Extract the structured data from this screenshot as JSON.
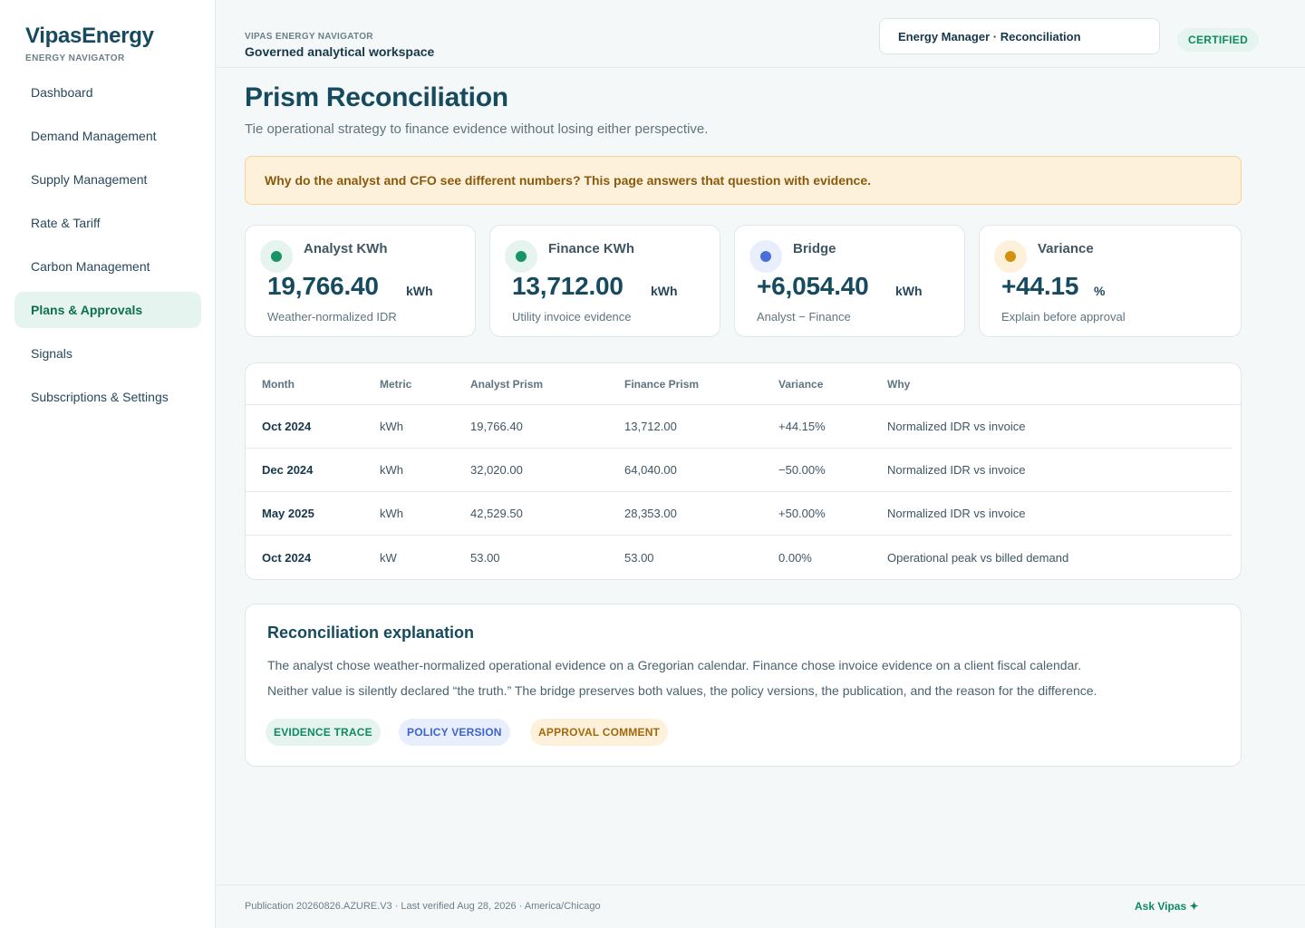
{
  "brand": {
    "name": "VipasEnergy",
    "subtitle": "ENERGY NAVIGATOR"
  },
  "sidebar": {
    "items": [
      {
        "label": "Dashboard"
      },
      {
        "label": "Demand Management"
      },
      {
        "label": "Supply Management"
      },
      {
        "label": "Rate & Tariff"
      },
      {
        "label": "Carbon Management"
      },
      {
        "label": "Plans & Approvals",
        "active": true
      },
      {
        "label": "Signals"
      },
      {
        "label": "Subscriptions & Settings"
      }
    ]
  },
  "header": {
    "eyebrow": "VIPAS ENERGY NAVIGATOR",
    "workspace": "Governed analytical workspace",
    "context": "Energy Manager · Reconciliation",
    "badge": "CERTIFIED"
  },
  "page": {
    "title": "Prism Reconciliation",
    "subtitle": "Tie operational strategy to finance evidence without losing either perspective.",
    "alert": "Why do the analyst and CFO see different numbers? This page answers that question with evidence."
  },
  "kpis": [
    {
      "label": "Analyst KWh",
      "value": "19,766.40",
      "unit": "kWh",
      "note": "Weather-normalized IDR",
      "color": "#1a9467",
      "bg": "#e6f4ef"
    },
    {
      "label": "Finance KWh",
      "value": "13,712.00",
      "unit": "kWh",
      "note": "Utility invoice evidence",
      "color": "#1a9467",
      "bg": "#e6f4ef"
    },
    {
      "label": "Bridge",
      "value": "+6,054.40",
      "unit": "kWh",
      "note": "Analyst − Finance",
      "color": "#4a6fd8",
      "bg": "#e8eefb"
    },
    {
      "label": "Variance",
      "value": "+44.15",
      "unit": "%",
      "note": "Explain before approval",
      "color": "#d4900f",
      "bg": "#fdf1dc"
    }
  ],
  "table": {
    "headers": [
      "Month",
      "Metric",
      "Analyst Prism",
      "Finance Prism",
      "Variance",
      "Why"
    ],
    "rows": [
      [
        "Oct 2024",
        "kWh",
        "19,766.40",
        "13,712.00",
        "+44.15%",
        "Normalized IDR vs invoice"
      ],
      [
        "Dec 2024",
        "kWh",
        "32,020.00",
        "64,040.00",
        "−50.00%",
        "Normalized IDR vs invoice"
      ],
      [
        "May 2025",
        "kWh",
        "42,529.50",
        "28,353.00",
        "+50.00%",
        "Normalized IDR vs invoice"
      ],
      [
        "Oct 2024",
        "kW",
        "53.00",
        "53.00",
        "0.00%",
        "Operational peak vs billed demand"
      ]
    ]
  },
  "explanation": {
    "title": "Reconciliation explanation",
    "p1": "The analyst chose weather-normalized operational evidence on a Gregorian calendar. Finance chose invoice evidence on a client fiscal calendar.",
    "p2": "Neither value is silently declared “the truth.” The bridge preserves both values, the policy versions, the publication, and the reason for the difference.",
    "chips": [
      "EVIDENCE TRACE",
      "POLICY VERSION",
      "APPROVAL COMMENT"
    ]
  },
  "footer": {
    "text": "Publication 20260826.AZURE.V3 · Last verified Aug 28, 2026 · America/Chicago",
    "ask": "Ask Vipas ✦"
  }
}
